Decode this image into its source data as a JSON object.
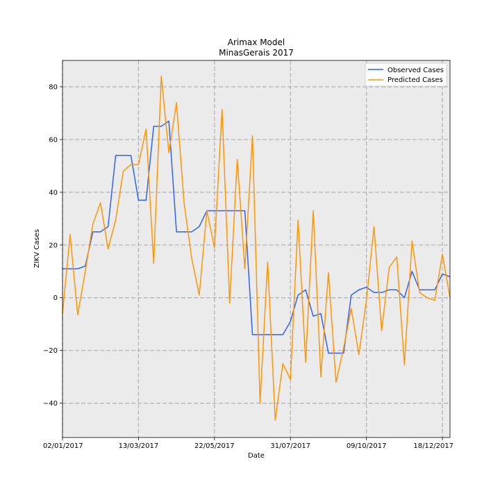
{
  "chart_data": {
    "type": "line",
    "title": "Arimax Model",
    "subtitle": "MinasGerais 2017",
    "xlabel": "Date",
    "ylabel": "ZIKV Cases",
    "x_ticks": [
      "02/01/2017",
      "13/03/2017",
      "22/05/2017",
      "31/07/2017",
      "09/10/2017",
      "18/12/2017"
    ],
    "xlim": [
      0,
      51
    ],
    "ylim": [
      -53,
      90
    ],
    "y_ticks": [
      -40,
      -20,
      0,
      20,
      40,
      60,
      80
    ],
    "y_tick_labels": [
      "−40",
      "−20",
      "0",
      "20",
      "40",
      "60",
      "80"
    ],
    "grid": true,
    "legend_position": "top-right",
    "background": "#ebebeb",
    "series": [
      {
        "name": "Observed Cases",
        "color": "#2f62f0",
        "values": [
          11,
          11,
          11,
          12,
          25,
          25,
          27,
          54,
          54,
          54,
          37,
          37,
          65,
          65,
          67,
          25,
          25,
          25,
          27,
          33,
          33,
          33,
          33,
          33,
          33,
          -14,
          -14,
          -14,
          -14,
          -14,
          -9,
          1,
          3,
          -7,
          -6,
          -21,
          -21,
          -21,
          1,
          3,
          4,
          2,
          2,
          3,
          3,
          0,
          10,
          3,
          3,
          3,
          9,
          8
        ]
      },
      {
        "name": "Predicted Cases",
        "color": "#ff9500",
        "values": [
          -6,
          24,
          -6.5,
          10,
          28,
          36,
          18.5,
          29.5,
          48,
          50.5,
          50.5,
          64,
          13,
          84,
          55,
          74,
          36,
          15,
          1,
          33,
          19,
          71.5,
          -2,
          52.5,
          11,
          61.5,
          -40,
          13.5,
          -46.5,
          -25,
          -31,
          29.5,
          -24.5,
          33,
          -30,
          9.5,
          -32,
          -19,
          -4,
          -21.5,
          -1,
          27,
          -12.5,
          11.5,
          15.5,
          -25.5,
          21.5,
          2,
          0,
          -1,
          16.5,
          0
        ]
      }
    ]
  }
}
